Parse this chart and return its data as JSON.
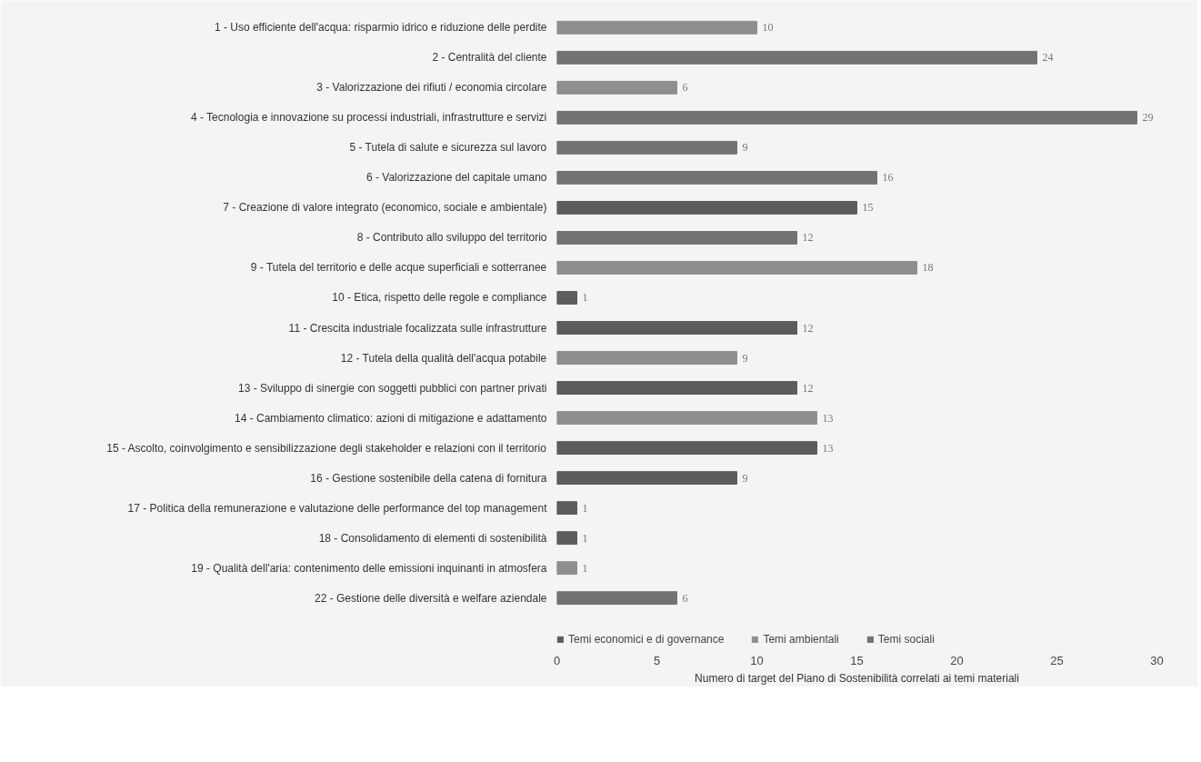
{
  "chart_data": {
    "type": "bar",
    "orientation": "horizontal",
    "categories": [
      "1 - Uso efficiente dell'acqua: risparmio idrico e riduzione delle perdite",
      "2 - Centralità del cliente",
      "3 - Valorizzazione dei rifiuti / economia circolare",
      "4 - Tecnologia e innovazione su processi industriali, infrastrutture e servizi",
      "5 - Tutela di salute e sicurezza sul lavoro",
      "6 - Valorizzazione del capitale umano",
      "7 - Creazione di valore integrato (economico, sociale e ambientale)",
      "8 - Contributo allo sviluppo del territorio",
      "9 - Tutela del territorio e delle acque superficiali e sotterranee",
      "10 - Etica, rispetto delle regole e compliance",
      "11 - Crescita industriale focalizzata sulle infrastrutture",
      "12 - Tutela della qualità dell'acqua potabile",
      "13 - Sviluppo di sinergie con soggetti pubblici con partner privati",
      "14 - Cambiamento climatico: azioni di mitigazione e adattamento",
      "15 - Ascolto, coinvolgimento e sensibilizzazione degli stakeholder e relazioni con il territorio",
      "16 - Gestione sostenibile della catena di fornitura",
      "17 - Politica della remunerazione e valutazione delle performance del top management",
      "18 - Consolidamento di elementi di sostenibilità",
      "19 - Qualità dell'aria: contenimento delle emissioni inquinanti in atmosfera",
      "22 - Gestione delle diversità e welfare aziendale"
    ],
    "series": [
      {
        "name": "Temi economici e di governance",
        "color": "#5c5c5c",
        "values": [
          null,
          null,
          null,
          null,
          null,
          null,
          15,
          null,
          null,
          1,
          12,
          null,
          12,
          null,
          13,
          9,
          1,
          1,
          null,
          null
        ]
      },
      {
        "name": "Temi ambientali",
        "color": "#8e8e8e",
        "values": [
          10,
          null,
          6,
          null,
          null,
          null,
          null,
          null,
          18,
          null,
          null,
          9,
          null,
          13,
          null,
          null,
          null,
          null,
          1,
          null
        ]
      },
      {
        "name": "Temi sociali",
        "color": "#727272",
        "values": [
          null,
          24,
          null,
          29,
          9,
          16,
          null,
          12,
          null,
          null,
          null,
          null,
          null,
          null,
          null,
          null,
          null,
          null,
          null,
          6
        ]
      }
    ],
    "xlabel": "Numero di target del Piano di Sostenibilità correlati ai temi materiali",
    "xlim": [
      0,
      30
    ],
    "xticks": [
      0,
      5,
      10,
      15,
      20,
      25,
      30
    ],
    "data_labels": true,
    "grid": false,
    "legend": "bottom left"
  }
}
